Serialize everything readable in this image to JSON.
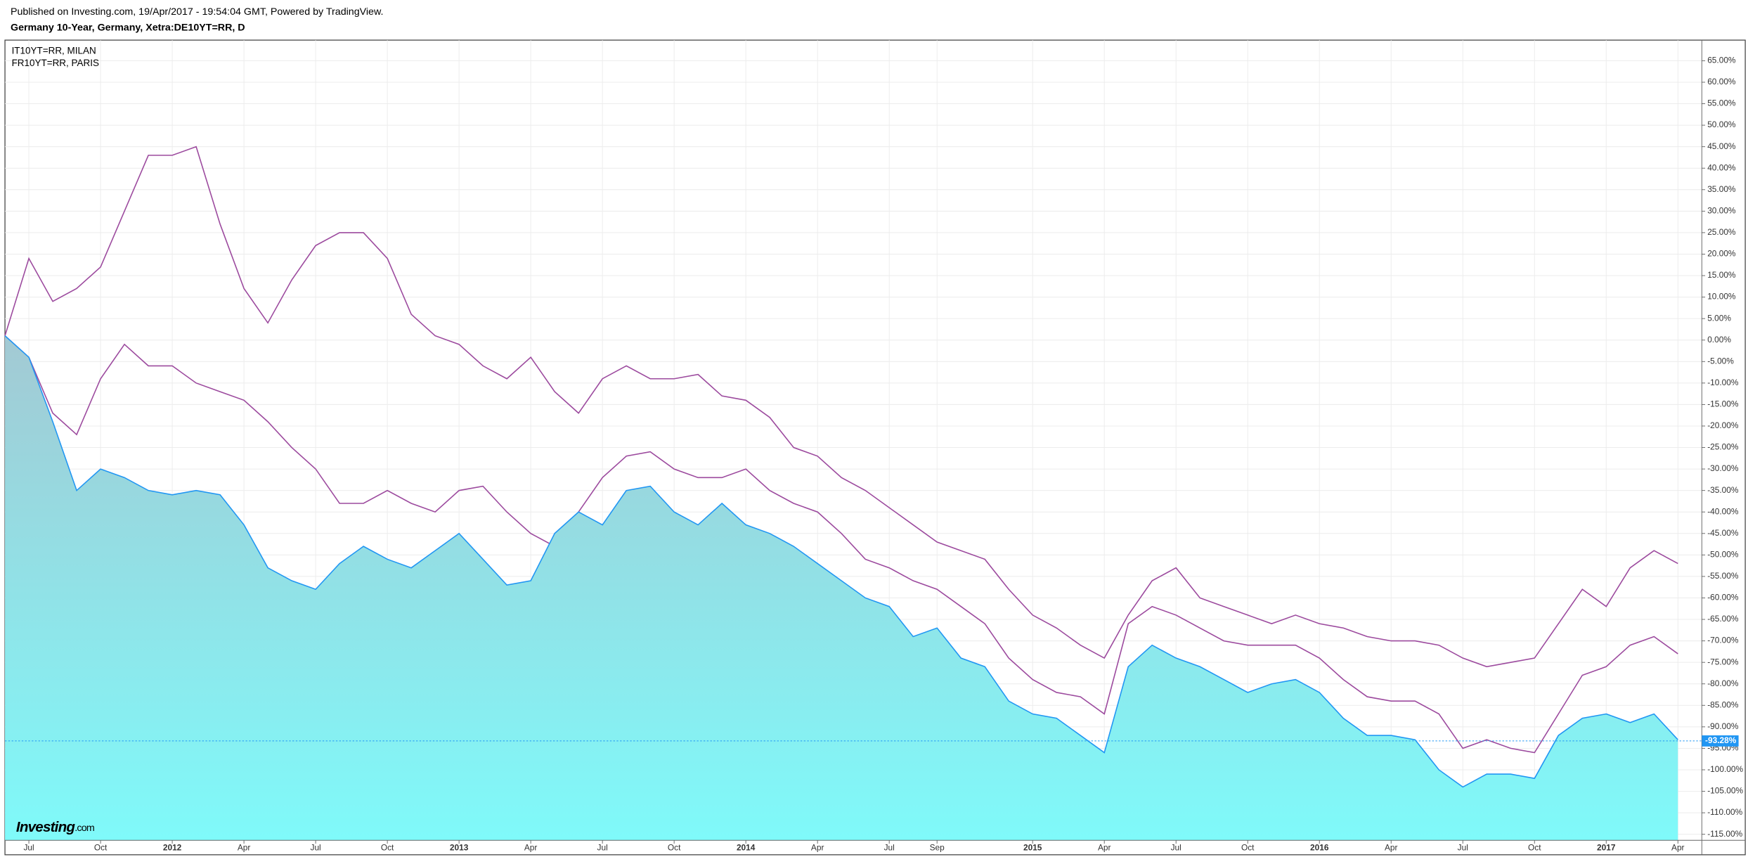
{
  "header": "Published on Investing.com, 19/Apr/2017 - 19:54:04 GMT, Powered by TradingView.",
  "chart_data": {
    "type": "line",
    "title": "Germany 10-Year, Germany, Xetra:DE10YT=RR, D",
    "logo": "Investing",
    "logo_suffix": ".com",
    "x": [
      "2011-06",
      "2011-07",
      "2011-08",
      "2011-09",
      "2011-10",
      "2011-11",
      "2011-12",
      "2012-01",
      "2012-02",
      "2012-03",
      "2012-04",
      "2012-05",
      "2012-06",
      "2012-07",
      "2012-08",
      "2012-09",
      "2012-10",
      "2012-11",
      "2012-12",
      "2013-01",
      "2013-02",
      "2013-03",
      "2013-04",
      "2013-05",
      "2013-06",
      "2013-07",
      "2013-08",
      "2013-09",
      "2013-10",
      "2013-11",
      "2013-12",
      "2014-01",
      "2014-02",
      "2014-03",
      "2014-04",
      "2014-05",
      "2014-06",
      "2014-07",
      "2014-08",
      "2014-09",
      "2014-10",
      "2014-11",
      "2014-12",
      "2015-01",
      "2015-02",
      "2015-03",
      "2015-04",
      "2015-05",
      "2015-06",
      "2015-07",
      "2015-08",
      "2015-09",
      "2015-10",
      "2015-11",
      "2015-12",
      "2016-01",
      "2016-02",
      "2016-03",
      "2016-04",
      "2016-05",
      "2016-06",
      "2016-07",
      "2016-08",
      "2016-09",
      "2016-10",
      "2016-11",
      "2016-12",
      "2017-01",
      "2017-02",
      "2017-03",
      "2017-04"
    ],
    "series": [
      {
        "name": "IT10YT=RR, MILAN",
        "color": "#9c4a9e",
        "values": [
          1,
          19,
          9,
          12,
          17,
          30,
          43,
          43,
          45,
          27,
          12,
          4,
          14,
          22,
          25,
          25,
          19,
          6,
          1,
          -1,
          -6,
          -9,
          -4,
          -12,
          -17,
          -9,
          -6,
          -9,
          -9,
          -8,
          -13,
          -14,
          -18,
          -25,
          -27,
          -32,
          -35,
          -39,
          -43,
          -47,
          -49,
          -51,
          -58,
          -64,
          -67,
          -71,
          -74,
          -64,
          -56,
          -53,
          -60,
          -62,
          -64,
          -66,
          -64,
          -66,
          -67,
          -69,
          -70,
          -70,
          -71,
          -74,
          -76,
          -75,
          -74,
          -66,
          -58,
          -62,
          -53,
          -49,
          -52
        ]
      },
      {
        "name": "FR10YT=RR, PARIS",
        "color": "#9c4a9e",
        "values": [
          1,
          -4,
          -17,
          -22,
          -9,
          -1,
          -6,
          -6,
          -10,
          -12,
          -14,
          -19,
          -25,
          -30,
          -38,
          -38,
          -35,
          -38,
          -40,
          -35,
          -34,
          -40,
          -45,
          -48,
          -40,
          -32,
          -27,
          -26,
          -30,
          -32,
          -32,
          -30,
          -35,
          -38,
          -40,
          -45,
          -51,
          -53,
          -56,
          -58,
          -62,
          -66,
          -74,
          -79,
          -82,
          -83,
          -87,
          -66,
          -62,
          -64,
          -67,
          -70,
          -71,
          -71,
          -71,
          -74,
          -79,
          -83,
          -84,
          -84,
          -87,
          -95,
          -93,
          -95,
          -96,
          -87,
          -78,
          -76,
          -71,
          -69,
          -73
        ]
      },
      {
        "color": "#2196f3",
        "fill": true,
        "values": [
          1,
          -4,
          -19,
          -35,
          -30,
          -32,
          -35,
          -36,
          -35,
          -36,
          -43,
          -53,
          -56,
          -58,
          -52,
          -48,
          -51,
          -53,
          -49,
          -45,
          -51,
          -57,
          -56,
          -45,
          -40,
          -43,
          -35,
          -34,
          -40,
          -43,
          -38,
          -43,
          -45,
          -48,
          -52,
          -56,
          -60,
          -62,
          -69,
          -67,
          -74,
          -76,
          -84,
          -87,
          -88,
          -92,
          -96,
          -76,
          -71,
          -74,
          -76,
          -79,
          -82,
          -80,
          -79,
          -82,
          -88,
          -92,
          -92,
          -93,
          -100,
          -104,
          -101,
          -101,
          -102,
          -92,
          -88,
          -87,
          -89,
          -87,
          -93
        ]
      }
    ],
    "last_price": {
      "value": -93.28,
      "label": "-93.28%"
    },
    "xlim": [
      "2011-06",
      "2017-05"
    ],
    "xticks": [
      {
        "value": "2011-07",
        "label": "Jul"
      },
      {
        "value": "2011-10",
        "label": "Oct"
      },
      {
        "value": "2012-01",
        "label": "2012"
      },
      {
        "value": "2012-04",
        "label": "Apr"
      },
      {
        "value": "2012-07",
        "label": "Jul"
      },
      {
        "value": "2012-10",
        "label": "Oct"
      },
      {
        "value": "2013-01",
        "label": "2013"
      },
      {
        "value": "2013-04",
        "label": "Apr"
      },
      {
        "value": "2013-07",
        "label": "Jul"
      },
      {
        "value": "2013-10",
        "label": "Oct"
      },
      {
        "value": "2014-01",
        "label": "2014"
      },
      {
        "value": "2014-04",
        "label": "Apr"
      },
      {
        "value": "2014-07",
        "label": "Jul"
      },
      {
        "value": "2014-09",
        "label": "Sep"
      },
      {
        "value": "2015-01",
        "label": "2015"
      },
      {
        "value": "2015-04",
        "label": "Apr"
      },
      {
        "value": "2015-07",
        "label": "Jul"
      },
      {
        "value": "2015-10",
        "label": "Oct"
      },
      {
        "value": "2016-01",
        "label": "2016"
      },
      {
        "value": "2016-04",
        "label": "Apr"
      },
      {
        "value": "2016-07",
        "label": "Jul"
      },
      {
        "value": "2016-10",
        "label": "Oct"
      },
      {
        "value": "2017-01",
        "label": "2017"
      },
      {
        "value": "2017-04",
        "label": "Apr"
      }
    ],
    "ylim": [
      -116.4,
      69.8
    ],
    "yticks": [
      {
        "value": 65,
        "label": "65.00%"
      },
      {
        "value": 60,
        "label": "60.00%"
      },
      {
        "value": 55,
        "label": "55.00%"
      },
      {
        "value": 50,
        "label": "50.00%"
      },
      {
        "value": 45,
        "label": "45.00%"
      },
      {
        "value": 40,
        "label": "40.00%"
      },
      {
        "value": 35,
        "label": "35.00%"
      },
      {
        "value": 30,
        "label": "30.00%"
      },
      {
        "value": 25,
        "label": "25.00%"
      },
      {
        "value": 20,
        "label": "20.00%"
      },
      {
        "value": 15,
        "label": "15.00%"
      },
      {
        "value": 10,
        "label": "10.00%"
      },
      {
        "value": 5,
        "label": "5.00%"
      },
      {
        "value": 0,
        "label": "0.00%"
      },
      {
        "value": -5,
        "label": "-5.00%"
      },
      {
        "value": -10,
        "label": "-10.00%"
      },
      {
        "value": -15,
        "label": "-15.00%"
      },
      {
        "value": -20,
        "label": "-20.00%"
      },
      {
        "value": -25,
        "label": "-25.00%"
      },
      {
        "value": -30,
        "label": "-30.00%"
      },
      {
        "value": -35,
        "label": "-35.00%"
      },
      {
        "value": -40,
        "label": "-40.00%"
      },
      {
        "value": -45,
        "label": "-45.00%"
      },
      {
        "value": -50,
        "label": "-50.00%"
      },
      {
        "value": -55,
        "label": "-55.00%"
      },
      {
        "value": -60,
        "label": "-60.00%"
      },
      {
        "value": -65,
        "label": "-65.00%"
      },
      {
        "value": -70,
        "label": "-70.00%"
      },
      {
        "value": -75,
        "label": "-75.00%"
      },
      {
        "value": -80,
        "label": "-80.00%"
      },
      {
        "value": -85,
        "label": "-85.00%"
      },
      {
        "value": -90,
        "label": "-90.00%"
      },
      {
        "value": -95,
        "label": "-95.00%"
      },
      {
        "value": -100,
        "label": "-100.00%"
      },
      {
        "value": -105,
        "label": "-105.00%"
      },
      {
        "value": -110,
        "label": "-110.00%"
      },
      {
        "value": -115,
        "label": "-115.00%"
      }
    ],
    "grid": true
  }
}
